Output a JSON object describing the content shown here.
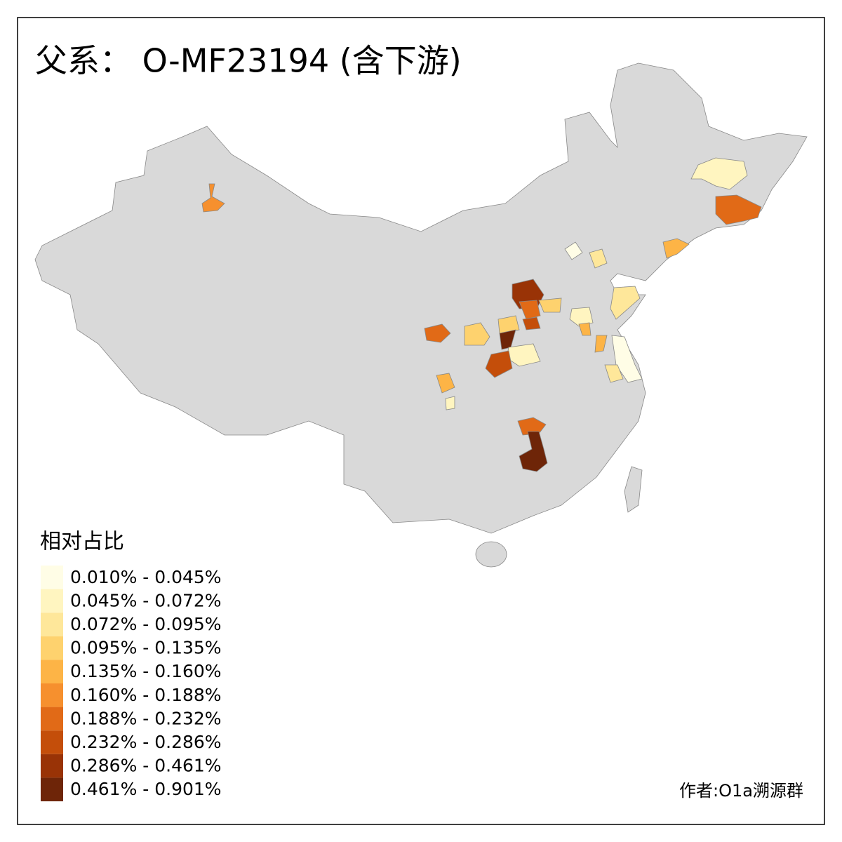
{
  "title": "父系： O-MF23194 (含下游)",
  "legend": {
    "title": "相对占比",
    "items": [
      {
        "label": "0.010% - 0.045%",
        "color": "#fffde6"
      },
      {
        "label": "0.045% - 0.072%",
        "color": "#fff5c0"
      },
      {
        "label": "0.072% - 0.095%",
        "color": "#fee79a"
      },
      {
        "label": "0.095% - 0.135%",
        "color": "#fed26e"
      },
      {
        "label": "0.135% - 0.160%",
        "color": "#fdb446"
      },
      {
        "label": "0.160% - 0.188%",
        "color": "#f6902e"
      },
      {
        "label": "0.188% - 0.232%",
        "color": "#e16a17"
      },
      {
        "label": "0.232% - 0.286%",
        "color": "#c44e0a"
      },
      {
        "label": "0.286% - 0.461%",
        "color": "#993306"
      },
      {
        "label": "0.461% - 0.901%",
        "color": "#6e2508"
      }
    ]
  },
  "credit": "作者:O1a溯源群"
}
